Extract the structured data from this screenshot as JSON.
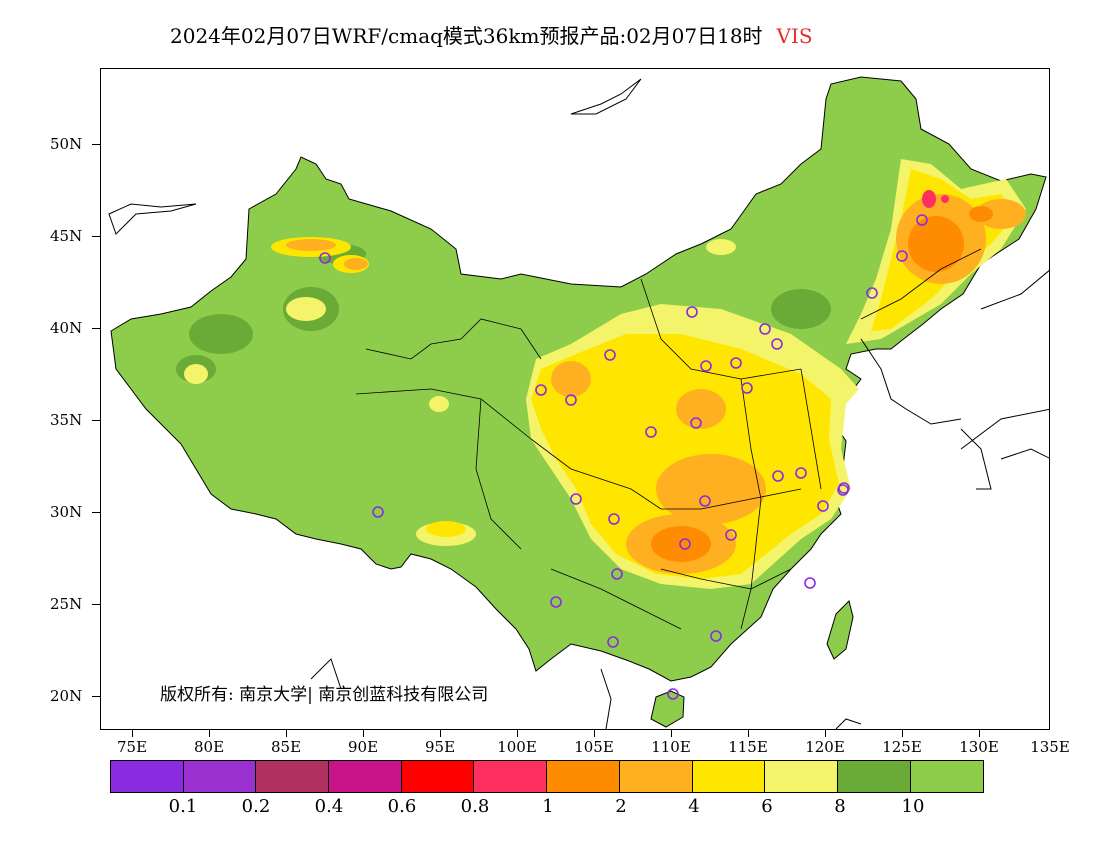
{
  "title": "2024年02月07日WRF/cmaq模式36km预报产品:02月07日18时",
  "variable": "VIS",
  "copyright": "版权所有: 南京大学| 南京创蓝科技有限公司",
  "lat_labels": [
    "50N",
    "45N",
    "40N",
    "35N",
    "30N",
    "25N",
    "20N"
  ],
  "lon_labels": [
    "75E",
    "80E",
    "85E",
    "90E",
    "95E",
    "100E",
    "105E",
    "110E",
    "115E",
    "120E",
    "125E",
    "130E",
    "135E"
  ],
  "legend": {
    "colors": [
      "#8a2be2",
      "#9b30d0",
      "#b03060",
      "#c81488",
      "#ff0000",
      "#ff3060",
      "#ff8c00",
      "#ffb020",
      "#ffe600",
      "#f4f46a",
      "#6aaa36",
      "#8ecd4c"
    ],
    "labels": [
      "0.1",
      "0.2",
      "0.4",
      "0.6",
      "0.8",
      "1",
      "2",
      "4",
      "6",
      "8",
      "10"
    ]
  },
  "stations_marker_color": "#8a2be2"
}
